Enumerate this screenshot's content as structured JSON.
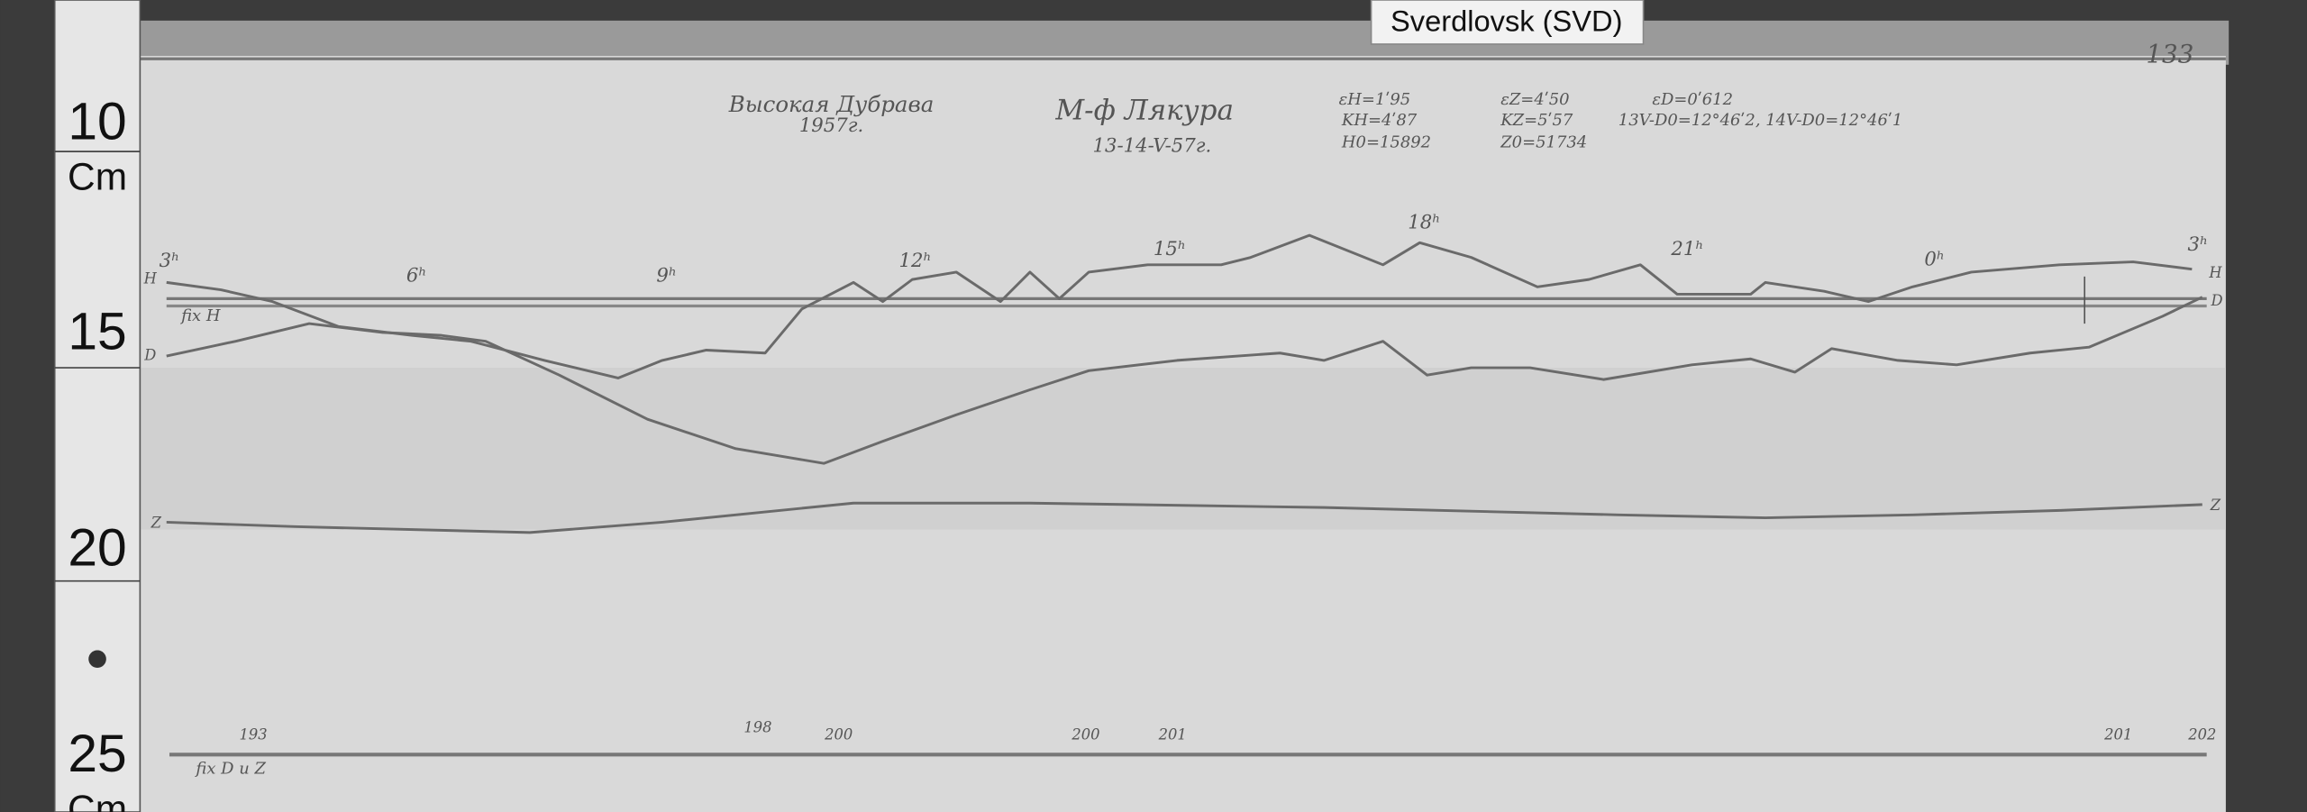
{
  "label": "Sverdlovsk (SVD)",
  "page_number": "133",
  "ruler": {
    "marks": [
      "10",
      "Cm",
      "15",
      "20",
      "25",
      "Cm"
    ]
  },
  "header": {
    "station": "Высокая Дубрава",
    "year": "1957г.",
    "instrument": "М-ф Лякура",
    "dates": "13-14-V-57г.",
    "constants": [
      "εH=1ʹ95",
      "KH=4ʹ87",
      "H0=15892",
      "εZ=4ʹ50",
      "KZ=5ʹ57",
      "Z0=51734",
      "εD=0ʹ612",
      "13V-D0=12°46ʹ2, 14V-D0=12°46ʹ1"
    ]
  },
  "hours": [
    "3ʰ",
    "6ʰ",
    "9ʰ",
    "12ʰ",
    "15ʰ",
    "18ʰ",
    "21ʰ",
    "0ʰ",
    "3ʰ"
  ],
  "curve_labels": [
    "H",
    "H",
    "D",
    "D",
    "Z",
    "Z"
  ],
  "fix_labels": [
    "fix H",
    "fix D и Z"
  ],
  "scale_marks": [
    "193",
    "198",
    "200",
    "200",
    "201",
    "201",
    "202"
  ]
}
